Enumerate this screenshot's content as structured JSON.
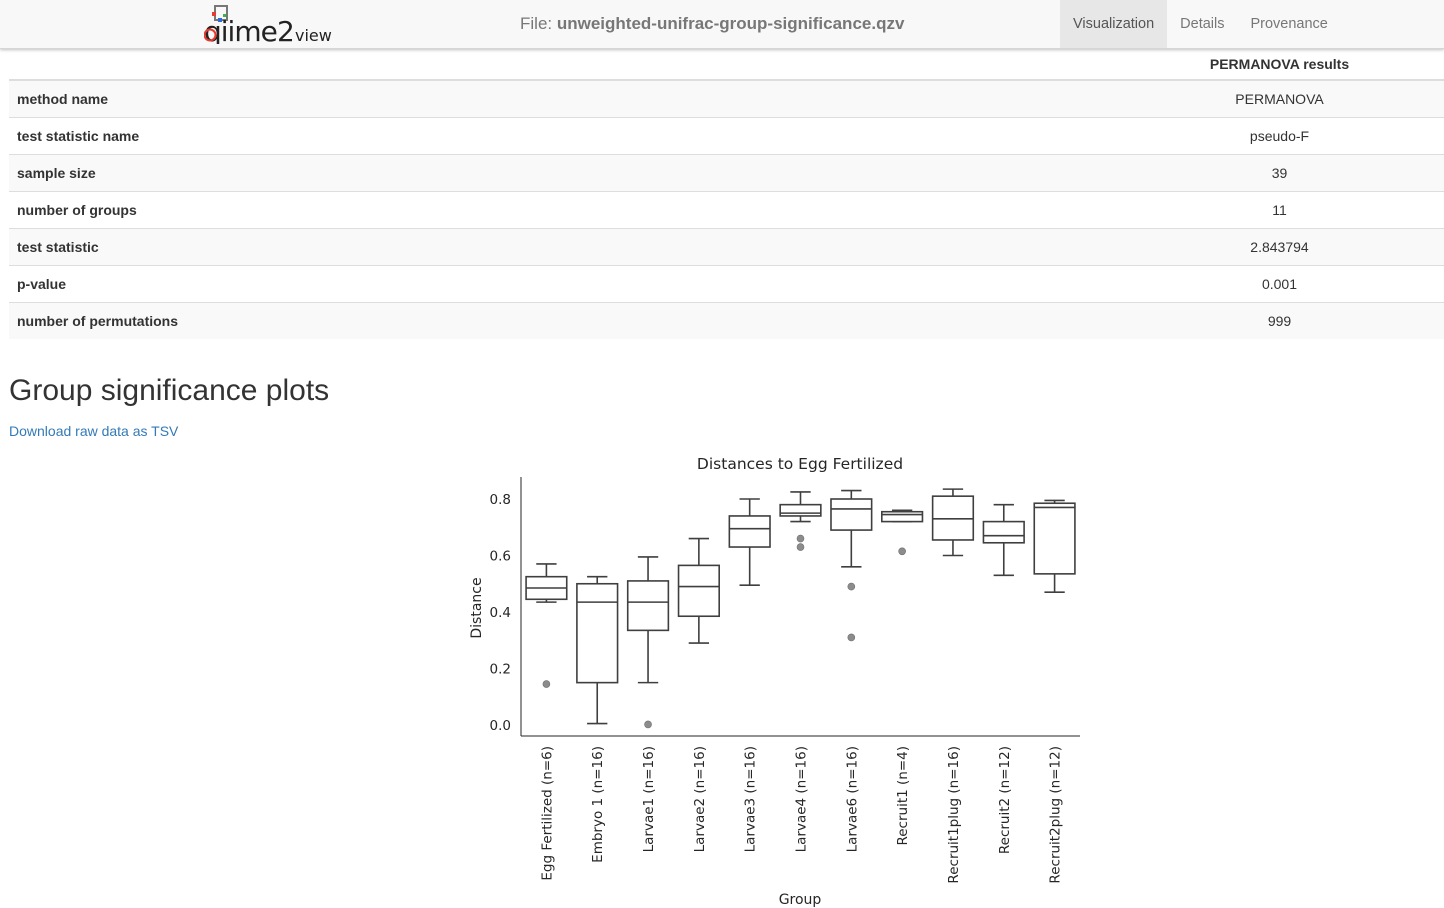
{
  "header": {
    "file_prefix": "File: ",
    "file_name": "unweighted-unifrac-group-significance.qzv",
    "tabs": [
      {
        "label": "Visualization",
        "active": true
      },
      {
        "label": "Details",
        "active": false
      },
      {
        "label": "Provenance",
        "active": false
      }
    ],
    "logo_main": "qiime2",
    "logo_sub": "view"
  },
  "results": {
    "column_header": "PERMANOVA results",
    "rows": [
      {
        "key": "method name",
        "value": "PERMANOVA"
      },
      {
        "key": "test statistic name",
        "value": "pseudo-F"
      },
      {
        "key": "sample size",
        "value": "39"
      },
      {
        "key": "number of groups",
        "value": "11"
      },
      {
        "key": "test statistic",
        "value": "2.843794"
      },
      {
        "key": "p-value",
        "value": "0.001"
      },
      {
        "key": "number of permutations",
        "value": "999"
      }
    ]
  },
  "section": {
    "title": "Group significance plots",
    "download_label": "Download raw data as TSV"
  },
  "chart_data": {
    "type": "box",
    "title": "Distances to Egg Fertilized",
    "xlabel": "Group",
    "ylabel": "Distance",
    "ylim": [
      -0.04,
      0.88
    ],
    "yticks": [
      "0.0",
      "0.2",
      "0.4",
      "0.6",
      "0.8"
    ],
    "grid": false,
    "categories": [
      "Egg Fertilized (n=6)",
      "Embryo 1 (n=16)",
      "Larvae1 (n=16)",
      "Larvae2 (n=16)",
      "Larvae3 (n=16)",
      "Larvae4 (n=16)",
      "Larvae6 (n=16)",
      "Recruit1 (n=4)",
      "Recruit1plug (n=16)",
      "Recruit2 (n=12)",
      "Recruit2plug (n=12)"
    ],
    "boxes": [
      {
        "whislo": 0.435,
        "q1": 0.445,
        "med": 0.485,
        "q3": 0.525,
        "whishi": 0.57,
        "fliers": [
          0.145
        ]
      },
      {
        "whislo": 0.005,
        "q1": 0.15,
        "med": 0.435,
        "q3": 0.5,
        "whishi": 0.525,
        "fliers": []
      },
      {
        "whislo": 0.15,
        "q1": 0.335,
        "med": 0.435,
        "q3": 0.51,
        "whishi": 0.595,
        "fliers": [
          0.002
        ]
      },
      {
        "whislo": 0.29,
        "q1": 0.385,
        "med": 0.49,
        "q3": 0.565,
        "whishi": 0.66,
        "fliers": []
      },
      {
        "whislo": 0.495,
        "q1": 0.63,
        "med": 0.695,
        "q3": 0.74,
        "whishi": 0.8,
        "fliers": []
      },
      {
        "whislo": 0.72,
        "q1": 0.74,
        "med": 0.75,
        "q3": 0.78,
        "whishi": 0.825,
        "fliers": [
          0.66,
          0.63
        ]
      },
      {
        "whislo": 0.56,
        "q1": 0.69,
        "med": 0.765,
        "q3": 0.8,
        "whishi": 0.83,
        "fliers": [
          0.49,
          0.31
        ]
      },
      {
        "whislo": 0.72,
        "q1": 0.72,
        "med": 0.745,
        "q3": 0.755,
        "whishi": 0.76,
        "fliers": [
          0.615
        ]
      },
      {
        "whislo": 0.6,
        "q1": 0.655,
        "med": 0.73,
        "q3": 0.81,
        "whishi": 0.835,
        "fliers": []
      },
      {
        "whislo": 0.53,
        "q1": 0.645,
        "med": 0.67,
        "q3": 0.72,
        "whishi": 0.78,
        "fliers": []
      },
      {
        "whislo": 0.47,
        "q1": 0.535,
        "med": 0.77,
        "q3": 0.785,
        "whishi": 0.795,
        "fliers": []
      }
    ],
    "box_color": "#ffffff",
    "line_color": "#3f3f3f",
    "flier_color": "#8c8c8c"
  },
  "colors": {
    "link": "#337ab7",
    "navbar_bg": "#f8f8f8",
    "active_tab": "#e7e7e7"
  }
}
